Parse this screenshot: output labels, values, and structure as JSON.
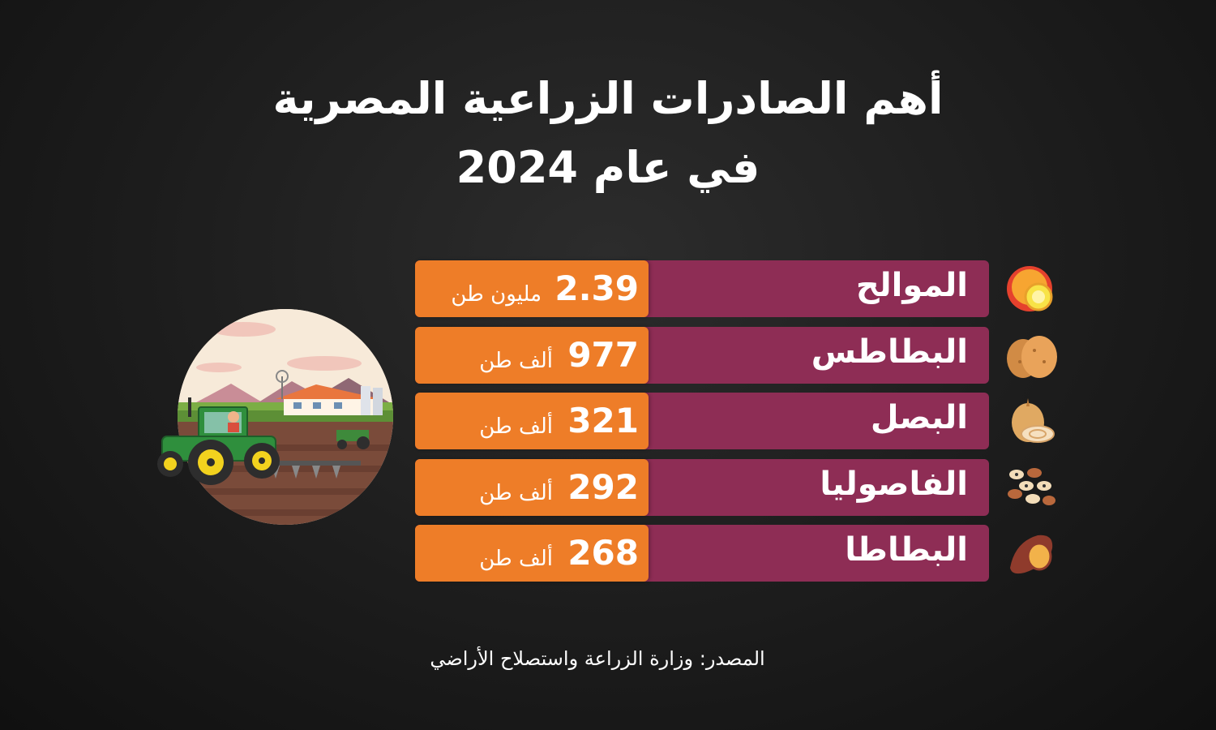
{
  "title_line1": "أهم الصادرات الزراعية المصرية",
  "title_line2": "في عام 2024",
  "source": "المصدر: وزارة الزراعة واستصلاح الأراضي",
  "colors": {
    "name_bar": "#8e2d55",
    "value_box": "#ee7d28",
    "background": "#1c1c1c"
  },
  "chart_data": {
    "type": "table",
    "title": "أهم الصادرات الزراعية المصرية في عام 2024",
    "rows": [
      {
        "name": "الموالح",
        "value": "2.39",
        "unit": "مليون طن",
        "icon": "citrus-icon"
      },
      {
        "name": "البطاطس",
        "value": "977",
        "unit": "ألف طن",
        "icon": "potato-icon"
      },
      {
        "name": "البصل",
        "value": "321",
        "unit": "ألف طن",
        "icon": "onion-icon"
      },
      {
        "name": "الفاصوليا",
        "value": "292",
        "unit": "ألف طن",
        "icon": "beans-icon"
      },
      {
        "name": "البطاطا",
        "value": "268",
        "unit": "ألف طن",
        "icon": "sweet-potato-icon"
      }
    ]
  }
}
